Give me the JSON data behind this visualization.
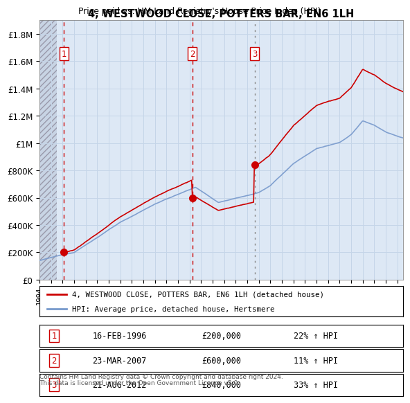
{
  "title": "4, WESTWOOD CLOSE, POTTERS BAR, EN6 1LH",
  "subtitle": "Price paid vs. HM Land Registry's House Price Index (HPI)",
  "ylim": [
    0,
    1900000
  ],
  "yticks": [
    0,
    200000,
    400000,
    600000,
    800000,
    1000000,
    1200000,
    1400000,
    1600000,
    1800000
  ],
  "ytick_labels": [
    "£0",
    "£200K",
    "£400K",
    "£600K",
    "£800K",
    "£1M",
    "£1.2M",
    "£1.4M",
    "£1.6M",
    "£1.8M"
  ],
  "xlim_start": 1994.0,
  "xlim_end": 2025.5,
  "sale_dates": [
    1996.12,
    2007.23,
    2012.64
  ],
  "sale_prices": [
    200000,
    600000,
    840000
  ],
  "sale_labels": [
    "1",
    "2",
    "3"
  ],
  "sale_date_labels": [
    "16-FEB-1996",
    "23-MAR-2007",
    "21-AUG-2012"
  ],
  "sale_price_labels": [
    "£200,000",
    "£600,000",
    "£840,000"
  ],
  "sale_hpi_labels": [
    "22% ↑ HPI",
    "11% ↑ HPI",
    "33% ↑ HPI"
  ],
  "sale_line_styles": [
    "red_dashed",
    "red_dashed",
    "grey_dotted"
  ],
  "red_line_color": "#cc0000",
  "blue_line_color": "#7799cc",
  "grid_color": "#c5d5e8",
  "bg_color": "#dde8f5",
  "legend_label_red": "4, WESTWOOD CLOSE, POTTERS BAR, EN6 1LH (detached house)",
  "legend_label_blue": "HPI: Average price, detached house, Hertsmere",
  "footer1": "Contains HM Land Registry data © Crown copyright and database right 2024.",
  "footer2": "This data is licensed under the Open Government Licence v3.0."
}
